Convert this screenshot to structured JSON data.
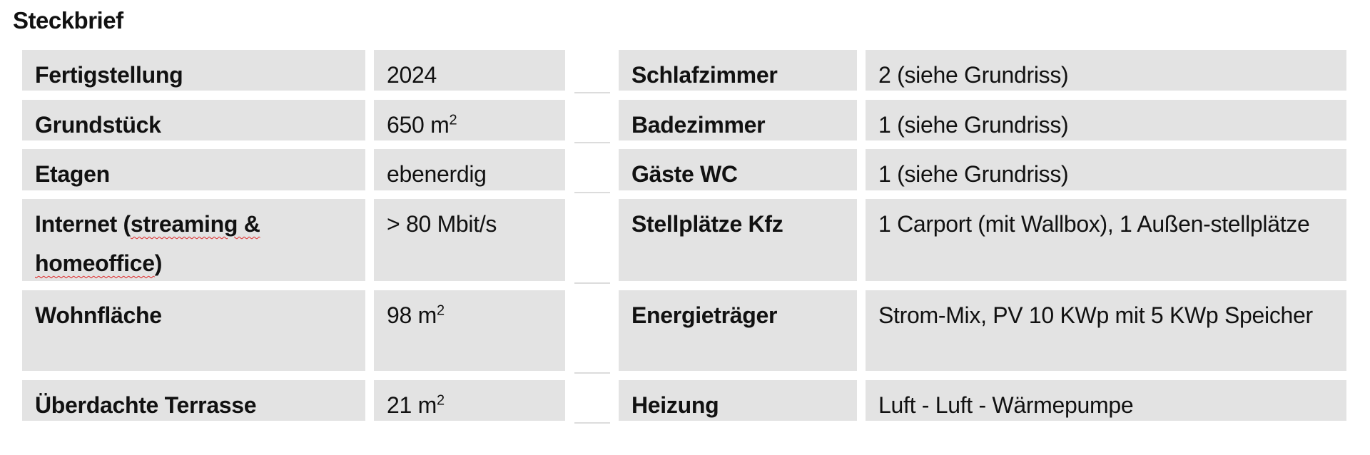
{
  "title": "Steckbrief",
  "left": [
    {
      "label": "Fertigstellung",
      "value": "2024",
      "sup": ""
    },
    {
      "label": "Grundstück",
      "value": "650 m",
      "sup": "2"
    },
    {
      "label": "Etagen",
      "value": "ebenerdig",
      "sup": ""
    },
    {
      "label_parts": [
        "Internet (",
        "streaming &",
        "homeoffice",
        ")"
      ],
      "value": "> 80 Mbit/s",
      "sup": ""
    },
    {
      "label": "Wohnfläche",
      "value": "98 m",
      "sup": "2"
    },
    {
      "label": "Überdachte Terrasse",
      "value": "21 m",
      "sup": "2"
    }
  ],
  "right": [
    {
      "label": "Schlafzimmer",
      "value": "2 (siehe Grundriss)"
    },
    {
      "label": "Badezimmer",
      "value": "1 (siehe Grundriss)"
    },
    {
      "label": "Gäste WC",
      "value": "1 (siehe Grundriss)"
    },
    {
      "label": "Stellplätze Kfz",
      "value": "1 Carport (mit Wallbox), 1 Außen-stellplätze"
    },
    {
      "label": "Energieträger",
      "value": "Strom-Mix, PV 10 KWp mit 5 KWp Speicher"
    },
    {
      "label": "Heizung",
      "value": "Luft - Luft - Wärmepumpe"
    }
  ]
}
